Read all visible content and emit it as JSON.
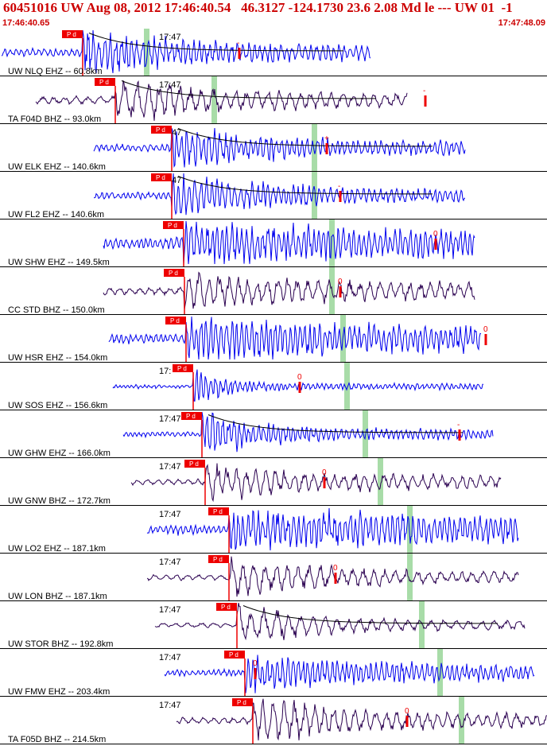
{
  "header": {
    "title": "60451016 UW Aug 08, 2012 17:46:40.54   46.3127 -124.1730 23.6 2.08 Md le --- UW 01  -1",
    "start_time": "17:46:40.65",
    "end_time": "17:47:48.09"
  },
  "colors": {
    "header_text": "#cc0000",
    "ehz_trace": "#0000ee",
    "bhz_trace": "#2a0050",
    "pick_flag": "#ee0000",
    "s_marker": "#a8dca8",
    "coda_curve": "#000000",
    "panel_border": "#000000"
  },
  "minute_label": "17:47",
  "traces": [
    {
      "label": "UW NLQ EHZ -- 60.8km",
      "type": "EHZ",
      "pick": "P d",
      "tick": "17:47",
      "coda": true,
      "mark": "-"
    },
    {
      "label": "TA F04D BHZ -- 93.0km",
      "type": "BHZ",
      "pick": "P d",
      "tick": "17:47",
      "coda": true,
      "mark": "-"
    },
    {
      "label": "UW ELK EHZ -- 140.6km",
      "type": "EHZ",
      "pick": "P d",
      "tick": "47",
      "coda": true,
      "mark": "+"
    },
    {
      "label": "UW FL2 EHZ -- 140.6km",
      "type": "EHZ",
      "pick": "P d",
      "tick": "47",
      "coda": true,
      "mark": "-"
    },
    {
      "label": "UW SHW EHZ -- 149.5km",
      "type": "EHZ",
      "pick": "P d",
      "tick": "",
      "coda": false,
      "mark": "0"
    },
    {
      "label": "CC STD BHZ -- 150.0km",
      "type": "BHZ",
      "pick": "P d",
      "tick": "",
      "coda": false,
      "mark": "0"
    },
    {
      "label": "UW HSR EHZ -- 154.0km",
      "type": "EHZ",
      "pick": "P d",
      "tick": "",
      "coda": false,
      "mark": "0"
    },
    {
      "label": "UW SOS EHZ -- 156.6km",
      "type": "EHZ",
      "pick": "P d",
      "tick": "17:",
      "coda": false,
      "mark": "0"
    },
    {
      "label": "UW GHW EHZ -- 166.0km",
      "type": "EHZ",
      "pick": "P d",
      "tick": "17:47",
      "coda": true,
      "mark": "-"
    },
    {
      "label": "UW GNW BHZ -- 172.7km",
      "type": "BHZ",
      "pick": "P d",
      "tick": "17:47",
      "coda": false,
      "mark": "0"
    },
    {
      "label": "UW LO2 EHZ -- 187.1km",
      "type": "EHZ",
      "pick": "P d",
      "tick": "17:47",
      "coda": false,
      "mark": ""
    },
    {
      "label": "UW LON BHZ -- 187.1km",
      "type": "BHZ",
      "pick": "P d",
      "tick": "17:47",
      "coda": false,
      "mark": "0"
    },
    {
      "label": "UW STOR BHZ -- 192.8km",
      "type": "BHZ",
      "pick": "P d",
      "tick": "17:47",
      "coda": true,
      "mark": ""
    },
    {
      "label": "UW FMW EHZ -- 203.4km",
      "type": "EHZ",
      "pick": "P d",
      "tick": "17:47",
      "coda": false,
      "mark": "0"
    },
    {
      "label": "TA F05D BHZ -- 214.5km",
      "type": "BHZ",
      "pick": "P d",
      "tick": "17:47",
      "coda": false,
      "mark": "0"
    }
  ]
}
